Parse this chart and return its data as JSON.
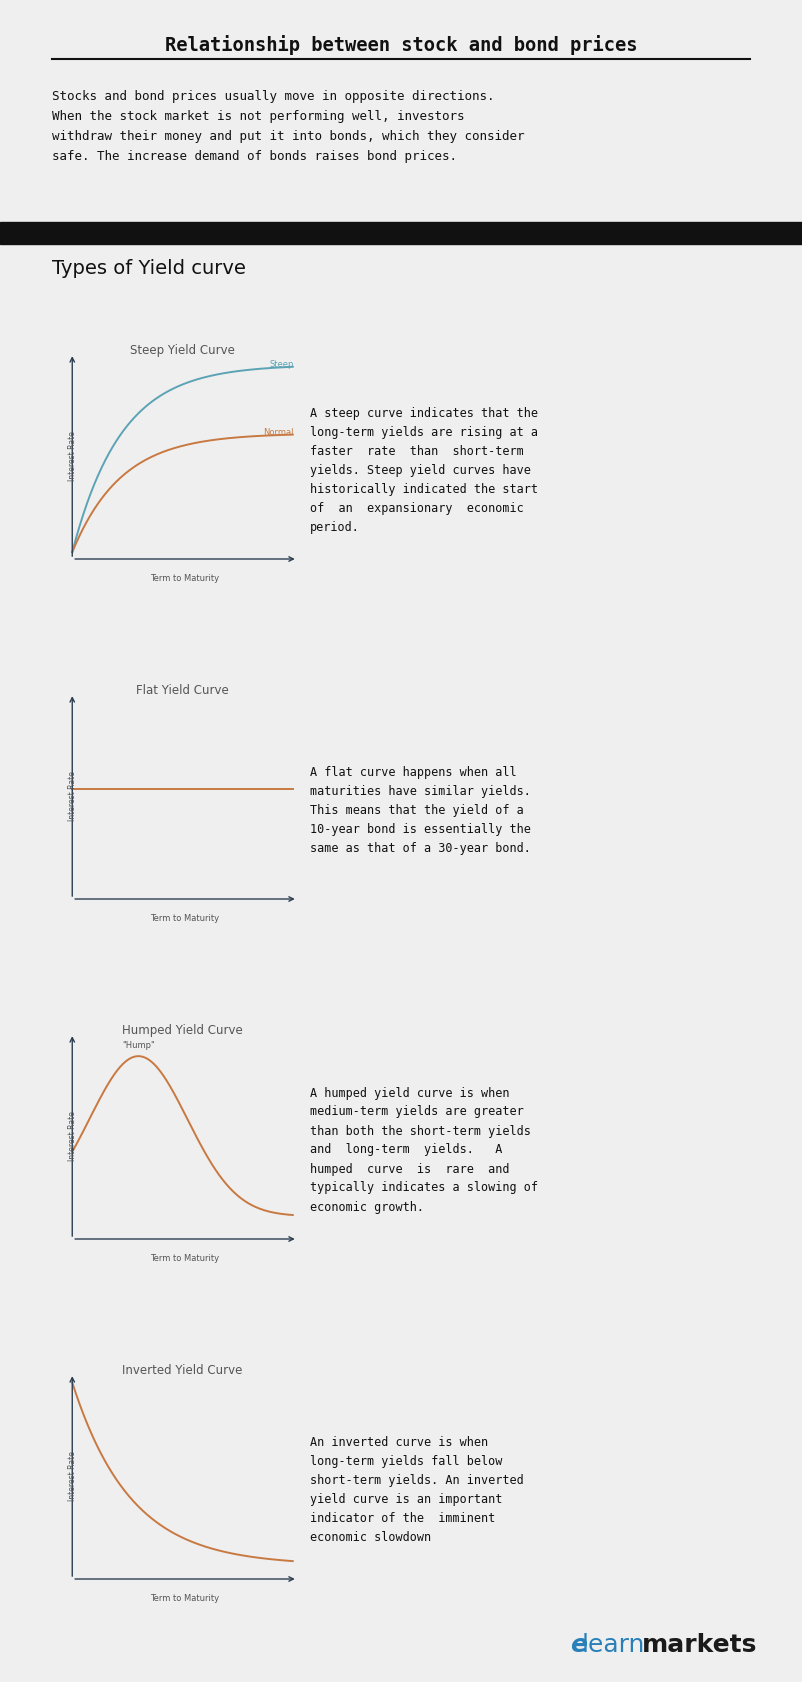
{
  "bg_color": "#efefef",
  "title": "Relationship between stock and bond prices",
  "intro_text": "Stocks and bond prices usually move in opposite directions.\nWhen the stock market is not performing well, investors\nwithdraw their money and put it into bonds, which they consider\nsafe. The increase demand of bonds raises bond prices.",
  "section_title": "Types of Yield curve",
  "curve_titles": [
    "Steep Yield Curve",
    "Flat Yield Curve",
    "Humped Yield Curve",
    "Inverted Yield Curve"
  ],
  "curve_descriptions": [
    "A steep curve indicates that the\nlong-term yields are rising at a\nfaster  rate  than  short-term\nyields. Steep yield curves have\nhistorically indicated the start\nof  an  expansionary  economic\nperiod.",
    "A flat curve happens when all\nmaturities have similar yields.\nThis means that the yield of a\n10-year bond is essentially the\nsame as that of a 30-year bond.",
    "A humped yield curve is when\nmedium-term yields are greater\nthan both the short-term yields\nand  long-term  yields.   A\nhumped  curve  is  rare  and\ntypically indicates a slowing of\neconomic growth.",
    "An inverted curve is when\nlong-term yields fall below\nshort-term yields. An inverted\nyield curve is an important\nindicator of the  imminent\neconomic slowdown"
  ],
  "steep_color": "#5ba3b5",
  "normal_color": "#c87941",
  "hump_color": "#c87941",
  "inverted_color": "#c87941",
  "flat_color": "#c87941",
  "axis_color": "#2c3e50",
  "ylabel": "Interest Rate",
  "xlabel": "Term to Maturity",
  "footer_color_e": "#2980b9",
  "footer_color_learn": "#2980b9",
  "footer_color_markets": "#1a1a1a"
}
